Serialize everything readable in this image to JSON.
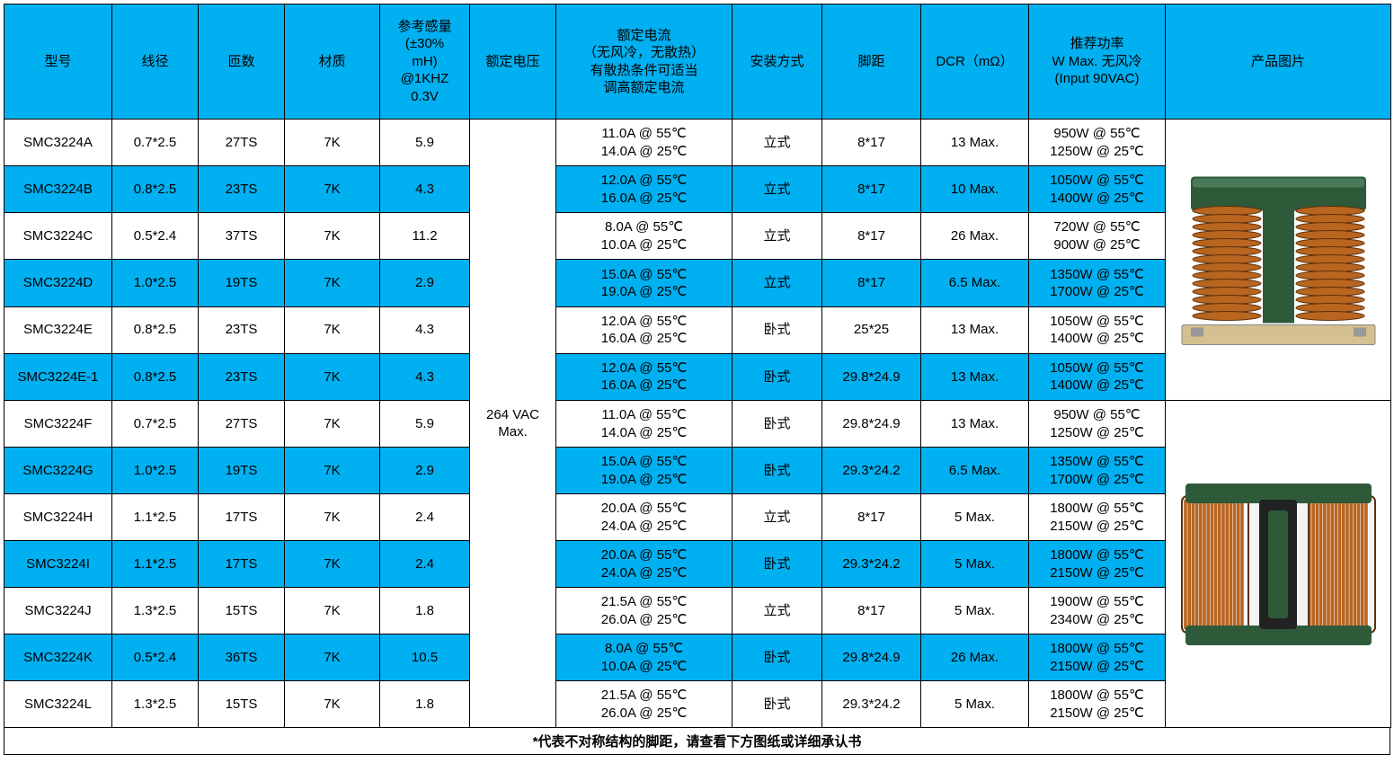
{
  "colors": {
    "header_bg": "#00b0f0",
    "border": "#000000",
    "coil_fill": "#b8651f",
    "coil_stroke": "#5a2f0a",
    "core_fill": "#2e5a3a",
    "core_highlight": "#4a7a58",
    "pcb_fill": "#d4c090"
  },
  "headers": {
    "model": "型号",
    "wire": "线径",
    "turns": "匝数",
    "material": "材质",
    "inductance": "参考感量\n(±30%\nmH)\n@1KHZ\n0.3V",
    "voltage": "额定电压",
    "current": "额定电流\n（无风冷，无散热）\n有散热条件可适当\n调高额定电流",
    "mount": "安装方式",
    "pitch": "脚距",
    "dcr": "DCR（mΩ）",
    "power": "推荐功率\nW Max. 无风冷\n(Input 90VAC)",
    "image": "产品图片"
  },
  "voltage_value": "264 VAC\nMax.",
  "footer": "*代表不对称结构的脚距，请查看下方图纸或详细承认书",
  "rows": [
    {
      "model": "SMC3224A",
      "wire": "0.7*2.5",
      "turns": "27TS",
      "mat": "7K",
      "ind": "5.9",
      "curr": "11.0A @ 55℃\n14.0A @ 25℃",
      "mount": "立式",
      "pitch": "8*17",
      "dcr": "13 Max.",
      "power": "950W @ 55℃\n1250W @ 25℃",
      "shade": "white"
    },
    {
      "model": "SMC3224B",
      "wire": "0.8*2.5",
      "turns": "23TS",
      "mat": "7K",
      "ind": "4.3",
      "curr": "12.0A @ 55℃\n16.0A @ 25℃",
      "mount": "立式",
      "pitch": "8*17",
      "dcr": "10 Max.",
      "power": "1050W @ 55℃\n1400W @ 25℃",
      "shade": "blue"
    },
    {
      "model": "SMC3224C",
      "wire": "0.5*2.4",
      "turns": "37TS",
      "mat": "7K",
      "ind": "11.2",
      "curr": "8.0A @ 55℃\n10.0A @ 25℃",
      "mount": "立式",
      "pitch": "8*17",
      "dcr": "26 Max.",
      "power": "720W @ 55℃\n900W @ 25℃",
      "shade": "white"
    },
    {
      "model": "SMC3224D",
      "wire": "1.0*2.5",
      "turns": "19TS",
      "mat": "7K",
      "ind": "2.9",
      "curr": "15.0A @ 55℃\n19.0A @ 25℃",
      "mount": "立式",
      "pitch": "8*17",
      "dcr": "6.5 Max.",
      "power": "1350W @ 55℃\n1700W @ 25℃",
      "shade": "blue"
    },
    {
      "model": "SMC3224E",
      "wire": "0.8*2.5",
      "turns": "23TS",
      "mat": "7K",
      "ind": "4.3",
      "curr": "12.0A @ 55℃\n16.0A @ 25℃",
      "mount": "卧式",
      "pitch": "25*25",
      "dcr": "13 Max.",
      "power": "1050W @ 55℃\n1400W @ 25℃",
      "shade": "white"
    },
    {
      "model": "SMC3224E-1",
      "wire": "0.8*2.5",
      "turns": "23TS",
      "mat": "7K",
      "ind": "4.3",
      "curr": "12.0A @ 55℃\n16.0A @ 25℃",
      "mount": "卧式",
      "pitch": "29.8*24.9",
      "dcr": "13 Max.",
      "power": "1050W @ 55℃\n1400W @ 25℃",
      "shade": "blue"
    },
    {
      "model": "SMC3224F",
      "wire": "0.7*2.5",
      "turns": "27TS",
      "mat": "7K",
      "ind": "5.9",
      "curr": "11.0A @ 55℃\n14.0A @ 25℃",
      "mount": "卧式",
      "pitch": "29.8*24.9",
      "dcr": "13 Max.",
      "power": "950W @ 55℃\n1250W @ 25℃",
      "shade": "white"
    },
    {
      "model": "SMC3224G",
      "wire": "1.0*2.5",
      "turns": "19TS",
      "mat": "7K",
      "ind": "2.9",
      "curr": "15.0A @ 55℃\n19.0A @ 25℃",
      "mount": "卧式",
      "pitch": "29.3*24.2",
      "dcr": "6.5 Max.",
      "power": "1350W @ 55℃\n1700W @ 25℃",
      "shade": "blue"
    },
    {
      "model": "SMC3224H",
      "wire": "1.1*2.5",
      "turns": "17TS",
      "mat": "7K",
      "ind": "2.4",
      "curr": "20.0A @ 55℃\n24.0A @ 25℃",
      "mount": "立式",
      "pitch": "8*17",
      "dcr": "5 Max.",
      "power": "1800W @ 55℃\n2150W @ 25℃",
      "shade": "white"
    },
    {
      "model": "SMC3224I",
      "wire": "1.1*2.5",
      "turns": "17TS",
      "mat": "7K",
      "ind": "2.4",
      "curr": "20.0A @ 55℃\n24.0A @ 25℃",
      "mount": "卧式",
      "pitch": "29.3*24.2",
      "dcr": "5 Max.",
      "power": "1800W @ 55℃\n2150W @ 25℃",
      "shade": "blue"
    },
    {
      "model": "SMC3224J",
      "wire": "1.3*2.5",
      "turns": "15TS",
      "mat": "7K",
      "ind": "1.8",
      "curr": "21.5A @ 55℃\n26.0A @ 25℃",
      "mount": "立式",
      "pitch": "8*17",
      "dcr": "5 Max.",
      "power": "1900W @ 55℃\n2340W @ 25℃",
      "shade": "white"
    },
    {
      "model": "SMC3224K",
      "wire": "0.5*2.4",
      "turns": "36TS",
      "mat": "7K",
      "ind": "10.5",
      "curr": "8.0A @ 55℃\n10.0A @ 25℃",
      "mount": "卧式",
      "pitch": "29.8*24.9",
      "dcr": "26 Max.",
      "power": "1800W @ 55℃\n2150W @ 25℃",
      "shade": "blue"
    },
    {
      "model": "SMC3224L",
      "wire": "1.3*2.5",
      "turns": "15TS",
      "mat": "7K",
      "ind": "1.8",
      "curr": "21.5A @ 55℃\n26.0A @ 25℃",
      "mount": "卧式",
      "pitch": "29.3*24.2",
      "dcr": "5 Max.",
      "power": "1800W @ 55℃\n2150W @ 25℃",
      "shade": "white"
    }
  ],
  "images": {
    "top_span": 6,
    "bottom_span": 7,
    "top_view": "front",
    "bottom_view": "top"
  }
}
